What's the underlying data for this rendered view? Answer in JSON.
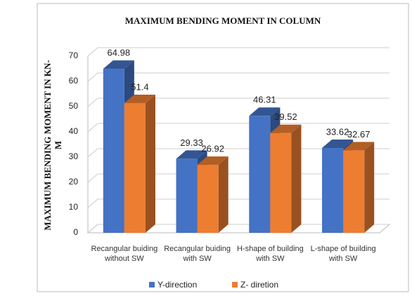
{
  "chart_data": {
    "type": "bar3d",
    "title": "MAXIMUM BENDING MOMENT IN  COLUMN",
    "y_label": "MAXIMUM BENDING MOMENT IN KN-M",
    "categories": [
      "Recangular buiding without SW",
      "Recangular buiding with SW",
      "H-shape of building with SW",
      "L-shape of building with SW"
    ],
    "series": [
      {
        "name": "Y-direction",
        "color": "#4472c4",
        "values": [
          64.98,
          29.33,
          46.31,
          33.62
        ]
      },
      {
        "name": "Z- diretion",
        "color": "#ed7d31",
        "values": [
          51.4,
          26.92,
          39.52,
          32.67
        ]
      }
    ],
    "ylim": [
      0,
      70
    ],
    "yticks": [
      0,
      10,
      20,
      30,
      40,
      50,
      60,
      70
    ],
    "grid": true,
    "legend": "bottom"
  }
}
